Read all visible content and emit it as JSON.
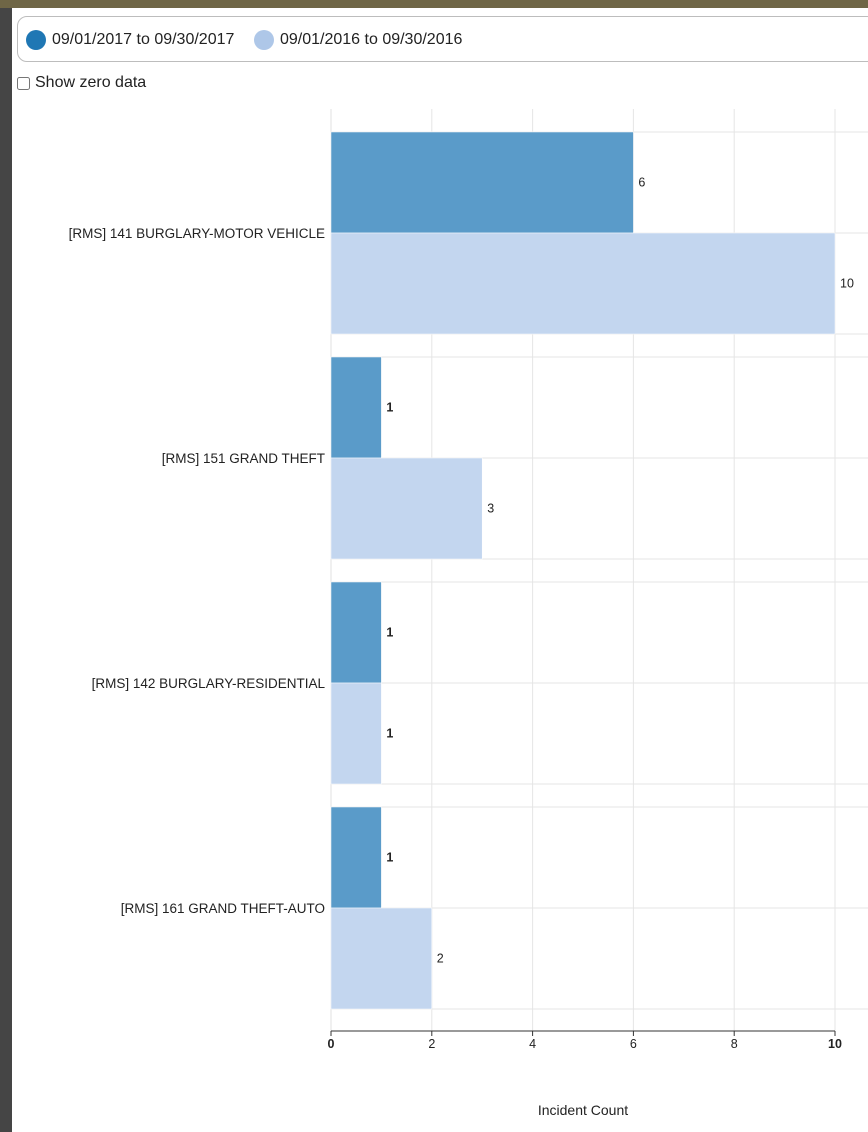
{
  "legend": [
    {
      "label": "09/01/2017 to 09/30/2017",
      "color": "#1f77b4"
    },
    {
      "label": "09/01/2016 to 09/30/2016",
      "color": "#aec7e8"
    }
  ],
  "show_zero": {
    "label": "Show zero data",
    "checked": false
  },
  "chart_data": {
    "type": "bar",
    "orientation": "horizontal",
    "categories": [
      "[RMS] 141 BURGLARY-MOTOR VEHICLE",
      "[RMS] 151 GRAND THEFT",
      "[RMS] 142 BURGLARY-RESIDENTIAL",
      "[RMS] 161 GRAND THEFT-AUTO"
    ],
    "series": [
      {
        "name": "09/01/2017 to 09/30/2017",
        "values": [
          6,
          1,
          1,
          1
        ],
        "color": "#5a9bc9"
      },
      {
        "name": "09/01/2016 to 09/30/2016",
        "values": [
          10,
          3,
          1,
          2
        ],
        "color": "#c3d6ef"
      }
    ],
    "xlabel": "Incident Count",
    "xlim": [
      0,
      10
    ],
    "xticks": [
      "0",
      "2",
      "4",
      "6",
      "8",
      "10"
    ],
    "grid": true,
    "legend_position": "top"
  }
}
